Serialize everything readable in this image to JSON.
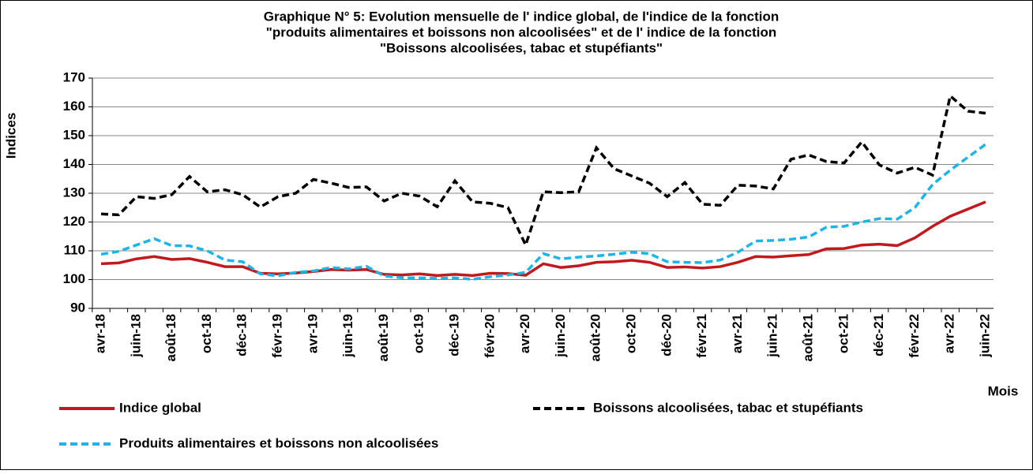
{
  "chart_data": {
    "type": "line",
    "title": [
      "Graphique N° 5: Evolution mensuelle de l' indice global, de l'indice de la fonction",
      "\"produits alimentaires et boissons non alcoolisées\" et de l' indice de la fonction",
      "\"Boissons alcoolisées, tabac et stupéfiants\""
    ],
    "y_label": "Indices",
    "x_label": "Mois",
    "categories": [
      "avr-18",
      null,
      "juin-18",
      null,
      "août-18",
      null,
      "oct-18",
      null,
      "déc-18",
      null,
      "févr-19",
      null,
      "avr-19",
      null,
      "juin-19",
      null,
      "août-19",
      null,
      "oct-19",
      null,
      "déc-19",
      null,
      "févr-20",
      null,
      "avr-20",
      null,
      "juin-20",
      null,
      "août-20",
      null,
      "oct-20",
      null,
      "déc-20",
      null,
      "févr-21",
      null,
      "avr-21",
      null,
      "juin-21",
      null,
      "août-21",
      null,
      "oct-21",
      null,
      "déc-21",
      null,
      "févr-22",
      null,
      "avr-22",
      null,
      "juin-22"
    ],
    "series": [
      {
        "name": "Indice global",
        "color": "#c0191e",
        "dash": false,
        "values": [
          105.5,
          105.8,
          107.2,
          108,
          107,
          107.3,
          106,
          104.5,
          104.5,
          102.2,
          102,
          102.3,
          102.8,
          103.5,
          103.3,
          103.5,
          101.8,
          101.6,
          102,
          101.4,
          101.8,
          101.4,
          102.2,
          102.1,
          101.5,
          105.5,
          104.2,
          104.8,
          106,
          106.2,
          106.7,
          106,
          104.2,
          104.4,
          104,
          104.5,
          106,
          108,
          107.8,
          108.3,
          108.7,
          110.7,
          110.8,
          112,
          112.3,
          111.8,
          114.5,
          118.5,
          122,
          124.5,
          127
        ]
      },
      {
        "name": "Boissons alcoolisées, tabac et stupéfiants",
        "color": "#000000",
        "dash": true,
        "values": [
          122.8,
          122.5,
          128.8,
          128.2,
          129.5,
          135.8,
          130.5,
          131.2,
          129.5,
          125.2,
          128.8,
          130,
          134.8,
          133.5,
          132,
          132.2,
          127.3,
          130,
          129,
          125.3,
          134.3,
          127,
          126.5,
          125,
          112,
          130.5,
          130.2,
          130.5,
          145.8,
          138.5,
          136,
          133.5,
          128.8,
          133.7,
          126.2,
          125.8,
          132.8,
          132.5,
          131.5,
          141.8,
          143.3,
          141,
          140.5,
          147.8,
          139.8,
          137,
          139,
          136.3,
          163.8,
          158.5,
          157.8
        ]
      },
      {
        "name": "Produits alimentaires et boissons non alcoolisées",
        "color": "#1fb4e8",
        "dash": true,
        "values": [
          108.8,
          109.8,
          112,
          114.2,
          111.8,
          111.7,
          110,
          106.8,
          106.2,
          102,
          101.3,
          102.5,
          103,
          104.2,
          103.7,
          104.6,
          101.3,
          100.6,
          100.6,
          100.4,
          100.6,
          100.1,
          101,
          101.6,
          102.5,
          109,
          107.2,
          107.8,
          108.2,
          108.8,
          109.5,
          109,
          106.2,
          106,
          105.9,
          106.8,
          109.5,
          113.4,
          113.6,
          114,
          114.8,
          118.2,
          118.5,
          120,
          121.2,
          121,
          125,
          133,
          138,
          142.5,
          147
        ]
      }
    ],
    "ylim": [
      90,
      170
    ],
    "yticks": [
      90,
      100,
      110,
      120,
      130,
      140,
      150,
      160,
      170
    ],
    "grid": true
  }
}
